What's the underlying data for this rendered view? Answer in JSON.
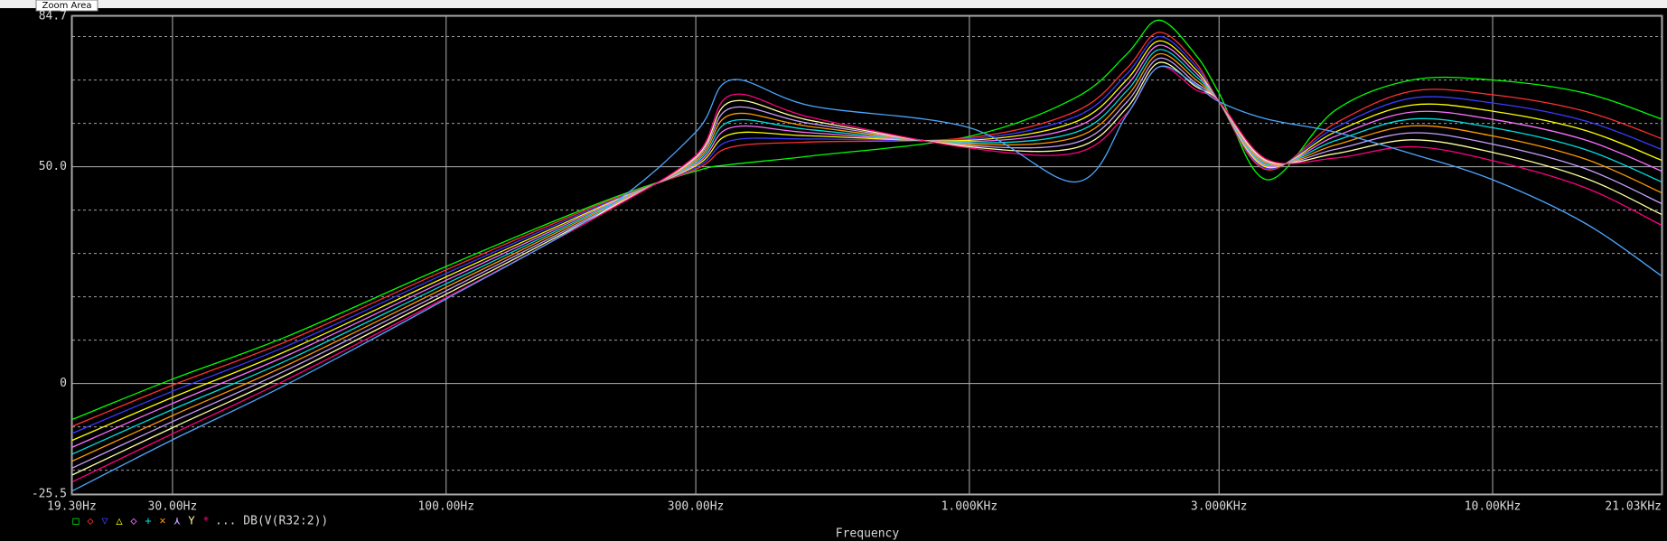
{
  "tooltip": "Zoom Area",
  "chart_data": {
    "type": "line",
    "x_label": "Frequency",
    "log_x": true,
    "grid": true,
    "x": [
      19.3,
      30,
      50,
      100,
      200,
      300,
      350,
      500,
      1000,
      1600,
      2000,
      2300,
      2700,
      3000,
      3700,
      5000,
      7000,
      10000,
      15000,
      21030
    ],
    "xlim": [
      19.3,
      21030
    ],
    "xticks": [
      {
        "value": 19.3,
        "label": "19.30Hz"
      },
      {
        "value": 30,
        "label": "30.00Hz"
      },
      {
        "value": 100,
        "label": "100.00Hz"
      },
      {
        "value": 300,
        "label": "300.00Hz"
      },
      {
        "value": 1000,
        "label": "1.000KHz"
      },
      {
        "value": 3000,
        "label": "3.000KHz"
      },
      {
        "value": 10000,
        "label": "10.00KHz"
      },
      {
        "value": 21030,
        "label": "21.03KHz"
      }
    ],
    "ylim": [
      -25.5,
      84.7
    ],
    "yticks": [
      -25.5,
      0,
      {
        "value": 50,
        "label": "50.0"
      },
      84.7
    ],
    "minor_yticks": [
      -20,
      -10,
      10,
      20,
      30,
      40,
      60,
      70,
      80
    ],
    "legend": {
      "markers": [
        "□",
        "◇",
        "▽",
        "△",
        "◇",
        "+",
        "×",
        "⋏",
        "Y",
        "*"
      ],
      "text": "... DB(V(R32:2))"
    },
    "series": [
      {
        "color": "#00ff00",
        "values": [
          -8.3,
          1,
          11,
          27,
          42,
          49,
          50.5,
          52.5,
          57,
          66,
          76,
          83.8,
          76,
          67,
          47,
          63,
          70,
          70,
          67,
          61
        ]
      },
      {
        "color": "#ff3030",
        "values": [
          -9.9,
          -0.4,
          9.9,
          26.2,
          41.7,
          49.4,
          54.5,
          55.7,
          56.7,
          62.8,
          72.7,
          81,
          74.2,
          65,
          49.3,
          60,
          67.4,
          66.6,
          62.8,
          56.5
        ]
      },
      {
        "color": "#3a3aff",
        "values": [
          -11.5,
          -1.8,
          8.8,
          25.4,
          41.4,
          49.8,
          56,
          56.4,
          56.4,
          61.6,
          71.4,
          80,
          73.4,
          65,
          49.6,
          59,
          65.8,
          64.7,
          60.6,
          54
        ]
      },
      {
        "color": "#ffff00",
        "values": [
          -13.1,
          -3.2,
          7.7,
          24.6,
          41.1,
          50.2,
          57.5,
          57.1,
          56.1,
          60.4,
          70.1,
          79,
          72.6,
          65,
          49.9,
          58,
          64.2,
          62.8,
          58.4,
          51.5
        ]
      },
      {
        "color": "#ff70ff",
        "values": [
          -14.7,
          -4.6,
          6.6,
          23.8,
          40.8,
          50.6,
          59,
          57.8,
          55.8,
          59.2,
          68.8,
          78,
          71.8,
          65,
          50.2,
          57,
          62.6,
          60.9,
          56.2,
          49
        ]
      },
      {
        "color": "#00e0e0",
        "values": [
          -16.3,
          -6,
          5.5,
          23,
          40.5,
          51,
          60.5,
          58.5,
          55.5,
          58,
          67.5,
          77,
          71,
          65,
          50.5,
          56,
          61,
          59,
          54,
          46.5
        ]
      },
      {
        "color": "#ff9900",
        "values": [
          -17.9,
          -7.4,
          4.4,
          22.2,
          40.2,
          51.4,
          62,
          59.2,
          55.2,
          56.8,
          66.2,
          76,
          70.2,
          65,
          50.8,
          55,
          59.4,
          57.1,
          51.8,
          44
        ]
      },
      {
        "color": "#c8a0ff",
        "values": [
          -19.5,
          -8.8,
          3.3,
          21.4,
          39.9,
          51.8,
          63.5,
          59.9,
          54.9,
          55.6,
          64.9,
          75,
          69.4,
          65,
          51.1,
          54,
          57.8,
          55.2,
          49.6,
          41.5
        ]
      },
      {
        "color": "#ffffa0",
        "values": [
          -21.1,
          -10.2,
          2.2,
          20.6,
          39.6,
          52.2,
          65,
          60.6,
          54.6,
          54.4,
          63.6,
          74,
          68.6,
          65,
          51.4,
          53,
          56.2,
          53.3,
          47.4,
          39
        ]
      },
      {
        "color": "#ff0080",
        "values": [
          -22.7,
          -11.6,
          1.1,
          19.8,
          39.3,
          52.6,
          66.5,
          61.3,
          54.3,
          53.2,
          62.3,
          73,
          67.8,
          65,
          51.7,
          52,
          54.6,
          51.4,
          45.2,
          36.5
        ]
      },
      {
        "color": "#4da6ff",
        "values": [
          -24.8,
          -13,
          0,
          19.5,
          40,
          58,
          70,
          64,
          59,
          46.5,
          62,
          73,
          69,
          65,
          61,
          58,
          53,
          47,
          37,
          24.8
        ]
      }
    ]
  }
}
